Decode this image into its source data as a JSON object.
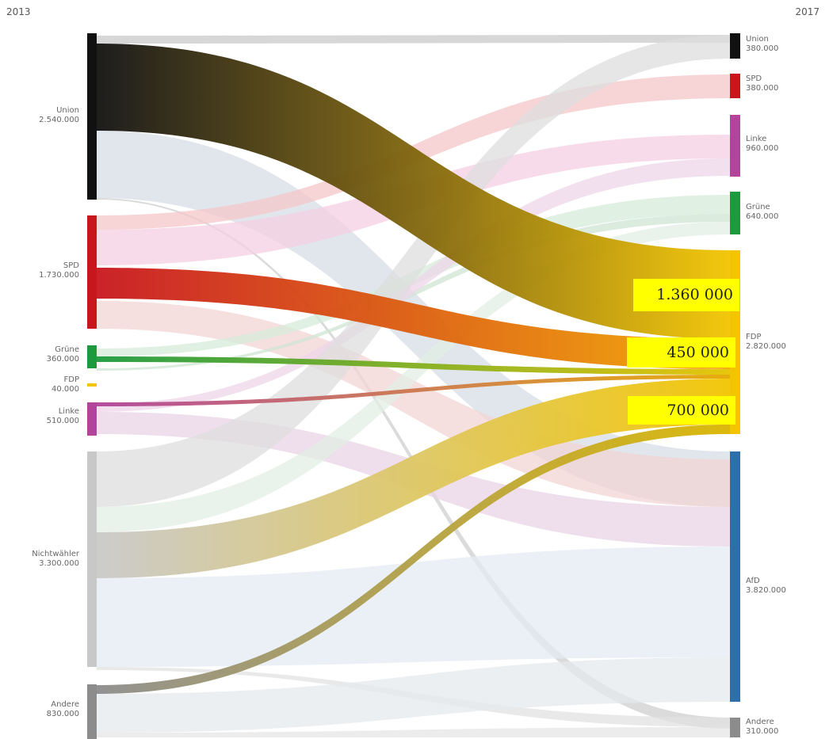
{
  "chart": {
    "year_left": "2013",
    "year_right": "2017",
    "left_nodes": [
      {
        "name": "Union",
        "value": "2.540.000",
        "color": "#111111"
      },
      {
        "name": "SPD",
        "value": "1.730.000",
        "color": "#c8161d"
      },
      {
        "name": "Grüne",
        "value": "360.000",
        "color": "#1e9a3e"
      },
      {
        "name": "FDP",
        "value": "40.000",
        "color": "#f2c500"
      },
      {
        "name": "Linke",
        "value": "510.000",
        "color": "#b2459b"
      },
      {
        "name": "Nichtwähler",
        "value": "3.300.000",
        "color": "#c8c8c8"
      },
      {
        "name": "Andere",
        "value": "830.000",
        "color": "#8c8c8c"
      }
    ],
    "right_nodes": [
      {
        "name": "Union",
        "value": "380.000",
        "color": "#111111"
      },
      {
        "name": "SPD",
        "value": "380.000",
        "color": "#c8161d"
      },
      {
        "name": "Linke",
        "value": "960.000",
        "color": "#b2459b"
      },
      {
        "name": "Grüne",
        "value": "640.000",
        "color": "#1e9a3e"
      },
      {
        "name": "FDP",
        "value": "2.820.000",
        "color": "#f2c500"
      },
      {
        "name": "AfD",
        "value": "3.820.000",
        "color": "#2e6fa8"
      },
      {
        "name": "Andere",
        "value": "310.000",
        "color": "#8c8c8c"
      }
    ],
    "callouts": [
      {
        "text": "1.360 000"
      },
      {
        "text": "450 000"
      },
      {
        "text": "700 000"
      }
    ],
    "fdp_color": "#f2c500"
  }
}
